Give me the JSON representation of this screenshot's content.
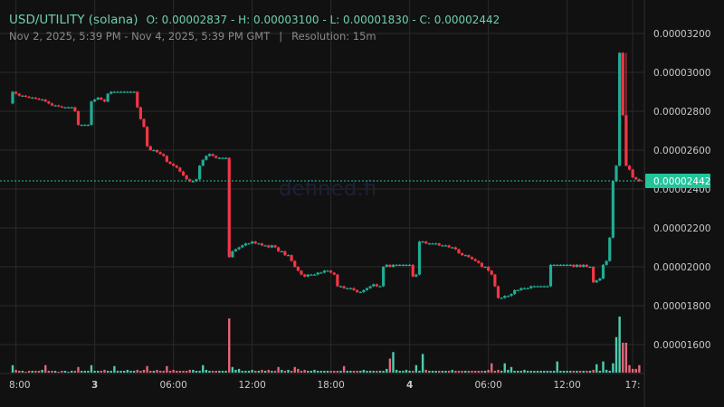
{
  "header": {
    "pair": "USD/UTILITY (solana)",
    "ohlc": "O: 0.00002837 - H: 0.00003100 - L: 0.00001830 - C: 0.00002442",
    "range": "Nov 2, 2025, 5:39 PM - Nov 4, 2025, 5:39 PM GMT",
    "separator": "|",
    "resolution": "Resolution: 15m"
  },
  "watermark": "defined.fi",
  "colors": {
    "background": "#111111",
    "grid": "#2a2a2a",
    "up": "#22ab94",
    "down": "#f23645",
    "volume_up": "#4ecdae",
    "volume_down": "#e4677a",
    "last_price": "#22c49a"
  },
  "chart_data": {
    "type": "candlestick",
    "price_unit": "1e-8 USD",
    "interval": "15m",
    "first_open": 2840,
    "closes": [
      2900,
      2890,
      2880,
      2880,
      2875,
      2870,
      2870,
      2865,
      2860,
      2860,
      2850,
      2840,
      2830,
      2830,
      2825,
      2820,
      2820,
      2820,
      2820,
      2800,
      2730,
      2730,
      2730,
      2730,
      2850,
      2860,
      2870,
      2860,
      2850,
      2890,
      2900,
      2900,
      2900,
      2900,
      2900,
      2900,
      2900,
      2900,
      2820,
      2760,
      2720,
      2620,
      2600,
      2600,
      2590,
      2580,
      2570,
      2540,
      2530,
      2520,
      2510,
      2490,
      2470,
      2450,
      2440,
      2440,
      2450,
      2520,
      2550,
      2570,
      2580,
      2570,
      2560,
      2560,
      2560,
      2560,
      2050,
      2080,
      2090,
      2100,
      2110,
      2120,
      2120,
      2130,
      2120,
      2120,
      2110,
      2110,
      2100,
      2110,
      2100,
      2080,
      2080,
      2060,
      2060,
      2030,
      2000,
      1980,
      1960,
      1950,
      1960,
      1960,
      1960,
      1970,
      1970,
      1980,
      1980,
      1970,
      1960,
      1900,
      1900,
      1890,
      1890,
      1890,
      1880,
      1870,
      1870,
      1880,
      1890,
      1900,
      1910,
      1900,
      1900,
      2000,
      2010,
      2000,
      2010,
      2010,
      2010,
      2010,
      2010,
      2010,
      1950,
      1960,
      2130,
      2130,
      2120,
      2120,
      2120,
      2120,
      2110,
      2110,
      2110,
      2100,
      2100,
      2090,
      2070,
      2060,
      2060,
      2050,
      2040,
      2030,
      2020,
      2000,
      2000,
      1980,
      1960,
      1900,
      1840,
      1840,
      1850,
      1850,
      1860,
      1880,
      1880,
      1890,
      1890,
      1890,
      1900,
      1900,
      1900,
      1900,
      1900,
      1900,
      2010,
      2010,
      2010,
      2010,
      2010,
      2010,
      2010,
      2000,
      2010,
      2000,
      2010,
      2000,
      2000,
      1920,
      1930,
      1940,
      2010,
      2030,
      2150,
      2440,
      2520,
      3100,
      2780,
      2520,
      2500,
      2460,
      2450,
      2442
    ],
    "high": 3100,
    "low": 1830,
    "volume": [
      8,
      3,
      2,
      2,
      1,
      2,
      2,
      2,
      2,
      3,
      8,
      2,
      2,
      2,
      1,
      2,
      2,
      1,
      2,
      2,
      6,
      2,
      2,
      2,
      8,
      2,
      2,
      2,
      3,
      2,
      2,
      7,
      2,
      2,
      2,
      3,
      2,
      2,
      3,
      2,
      3,
      7,
      2,
      2,
      3,
      2,
      2,
      7,
      2,
      3,
      2,
      2,
      2,
      2,
      3,
      3,
      2,
      2,
      8,
      3,
      2,
      2,
      2,
      2,
      2,
      2,
      58,
      6,
      3,
      4,
      2,
      2,
      2,
      3,
      2,
      2,
      3,
      2,
      3,
      2,
      2,
      6,
      3,
      2,
      3,
      2,
      6,
      4,
      2,
      3,
      2,
      2,
      3,
      2,
      2,
      2,
      2,
      2,
      2,
      2,
      2,
      7,
      2,
      2,
      2,
      2,
      2,
      3,
      2,
      2,
      2,
      2,
      2,
      2,
      4,
      15,
      22,
      3,
      2,
      2,
      3,
      2,
      2,
      8,
      2,
      20,
      3,
      2,
      2,
      2,
      2,
      2,
      2,
      2,
      3,
      2,
      2,
      2,
      2,
      2,
      2,
      2,
      2,
      2,
      2,
      3,
      10,
      2,
      3,
      2,
      10,
      3,
      6,
      2,
      2,
      2,
      3,
      2,
      2,
      2,
      2,
      2,
      2,
      2,
      2,
      2,
      12,
      2,
      2,
      2,
      2,
      2,
      2,
      2,
      2,
      2,
      2,
      3,
      9,
      2,
      12,
      3,
      2,
      10,
      38,
      60,
      32,
      32,
      8,
      4,
      4,
      8
    ],
    "y_ticks": [
      {
        "value": 3200,
        "label": "0.00003200"
      },
      {
        "value": 3000,
        "label": "0.00003000"
      },
      {
        "value": 2800,
        "label": "0.00002800"
      },
      {
        "value": 2600,
        "label": "0.00002600"
      },
      {
        "value": 2400,
        "label": "0.00002400"
      },
      {
        "value": 2200,
        "label": "0.00002200"
      },
      {
        "value": 2000,
        "label": "0.00002000"
      },
      {
        "value": 1800,
        "label": "0.00001800"
      },
      {
        "value": 1600,
        "label": "0.00001600"
      }
    ],
    "x_ticks": [
      {
        "time": "2025-11-02 18:00",
        "label": "8:00",
        "bold": false
      },
      {
        "time": "2025-11-03 00:00",
        "label": "3",
        "bold": true
      },
      {
        "time": "2025-11-03 06:00",
        "label": "06:00",
        "bold": false
      },
      {
        "time": "2025-11-03 12:00",
        "label": "12:00",
        "bold": false
      },
      {
        "time": "2025-11-03 18:00",
        "label": "18:00",
        "bold": false
      },
      {
        "time": "2025-11-04 00:00",
        "label": "4",
        "bold": true
      },
      {
        "time": "2025-11-04 06:00",
        "label": "06:00",
        "bold": false
      },
      {
        "time": "2025-11-04 12:00",
        "label": "12:00",
        "bold": false
      },
      {
        "time": "2025-11-04 17:00",
        "label": "17:",
        "bold": false
      }
    ],
    "last_price": {
      "value": 2442,
      "label": "0.00002442"
    },
    "grid": true
  }
}
